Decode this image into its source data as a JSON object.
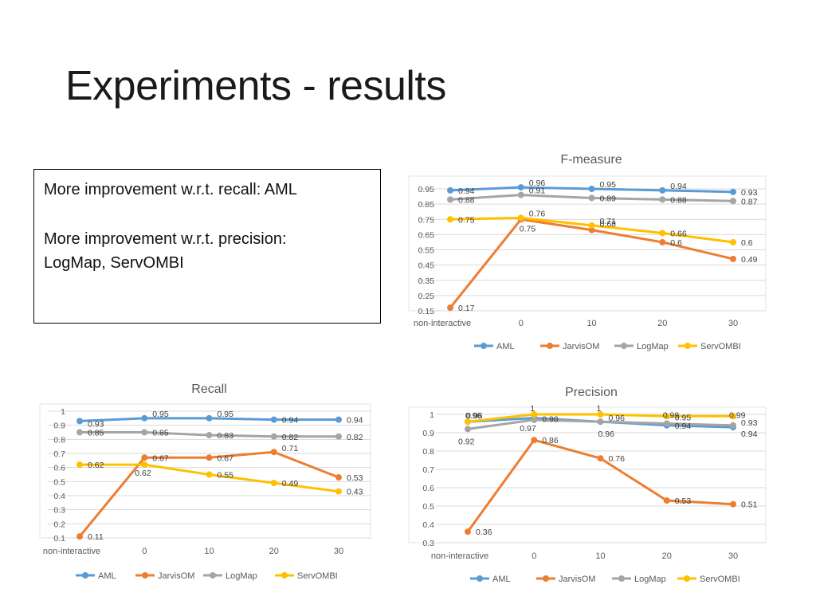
{
  "slide": {
    "title": "Experiments - results"
  },
  "note": {
    "line1": "More improvement w.r.t. recall: AML",
    "line2": "More improvement w.r.t. precision:",
    "line3": "LogMap, ServOMBI"
  },
  "colors": {
    "AML": "#5b9bd5",
    "JarvisOM": "#ed7d31",
    "LogMap": "#a5a5a5",
    "ServOMBI": "#ffc000"
  },
  "chart_data": [
    {
      "id": "fmeasure",
      "type": "line",
      "title": "F-measure",
      "categories": [
        "non-interactive",
        "0",
        "10",
        "20",
        "30"
      ],
      "ylim": [
        0.15,
        0.95
      ],
      "yticks": [
        "0.15",
        "0.25",
        "0.35",
        "0.45",
        "0.55",
        "0.65",
        "0.75",
        "0.85",
        "0.95"
      ],
      "series": [
        {
          "name": "AML",
          "values": [
            0.94,
            0.96,
            0.95,
            0.94,
            0.93
          ],
          "labels": [
            "0.94",
            "0.96",
            "0.95",
            "0.94",
            "0.93"
          ]
        },
        {
          "name": "JarvisOM",
          "values": [
            0.17,
            0.75,
            0.68,
            0.6,
            0.49
          ],
          "labels": [
            "0.17",
            "0.75",
            "0.68",
            "0.6",
            "0.49"
          ]
        },
        {
          "name": "LogMap",
          "values": [
            0.88,
            0.91,
            0.89,
            0.88,
            0.87
          ],
          "labels": [
            "0.88",
            "0.91",
            "0.89",
            "0.88",
            "0.87"
          ]
        },
        {
          "name": "ServOMBI",
          "values": [
            0.75,
            0.76,
            0.71,
            0.66,
            0.6
          ],
          "labels": [
            "0.75",
            "0.76",
            "0.71",
            "0.66",
            "0.6"
          ]
        }
      ]
    },
    {
      "id": "recall",
      "type": "line",
      "title": "Recall",
      "categories": [
        "non-interactive",
        "0",
        "10",
        "20",
        "30"
      ],
      "ylim": [
        0.1,
        1
      ],
      "yticks": [
        "0.1",
        "0.2",
        "0.3",
        "0.4",
        "0.5",
        "0.6",
        "0.7",
        "0.8",
        "0.9",
        "1"
      ],
      "series": [
        {
          "name": "AML",
          "values": [
            0.93,
            0.95,
            0.95,
            0.94,
            0.94
          ],
          "labels": [
            "0.93",
            "0.95",
            "0.95",
            "0.94",
            "0.94"
          ]
        },
        {
          "name": "JarvisOM",
          "values": [
            0.11,
            0.67,
            0.67,
            0.71,
            0.53
          ],
          "labels": [
            "0.11",
            "0.67",
            "0.67",
            "0.71",
            "0.53"
          ]
        },
        {
          "name": "LogMap",
          "values": [
            0.85,
            0.85,
            0.83,
            0.82,
            0.82
          ],
          "labels": [
            "0.85",
            "0.85",
            "0.83",
            "0.82",
            "0.82"
          ]
        },
        {
          "name": "ServOMBI",
          "values": [
            0.62,
            0.62,
            0.55,
            0.49,
            0.43
          ],
          "labels": [
            "0.62",
            "0.62",
            "0.55",
            "0.49",
            "0.43"
          ]
        }
      ]
    },
    {
      "id": "precision",
      "type": "line",
      "title": "Precision",
      "categories": [
        "non-interactive",
        "0",
        "10",
        "20",
        "30"
      ],
      "ylim": [
        0.3,
        1
      ],
      "yticks": [
        "0.3",
        "0.4",
        "0.5",
        "0.6",
        "0.7",
        "0.8",
        "0.9",
        "1"
      ],
      "series": [
        {
          "name": "AML",
          "values": [
            0.96,
            0.98,
            0.96,
            0.94,
            0.93
          ],
          "labels": [
            "0.96",
            "0.98",
            "0.96",
            "0.94",
            "0.93"
          ]
        },
        {
          "name": "JarvisOM",
          "values": [
            0.36,
            0.86,
            0.76,
            0.53,
            0.51
          ],
          "labels": [
            "0.36",
            "0.86",
            "0.76",
            "0.53",
            "0.51"
          ]
        },
        {
          "name": "LogMap",
          "values": [
            0.92,
            0.97,
            0.96,
            0.95,
            0.94
          ],
          "labels": [
            "0.92",
            "0.97",
            "0.96",
            "0.95",
            "0.94"
          ]
        },
        {
          "name": "ServOMBI",
          "values": [
            0.96,
            1,
            1,
            0.99,
            0.99
          ],
          "labels": [
            "0.96",
            "1",
            "1",
            "0.99",
            "0.99"
          ]
        }
      ]
    }
  ]
}
